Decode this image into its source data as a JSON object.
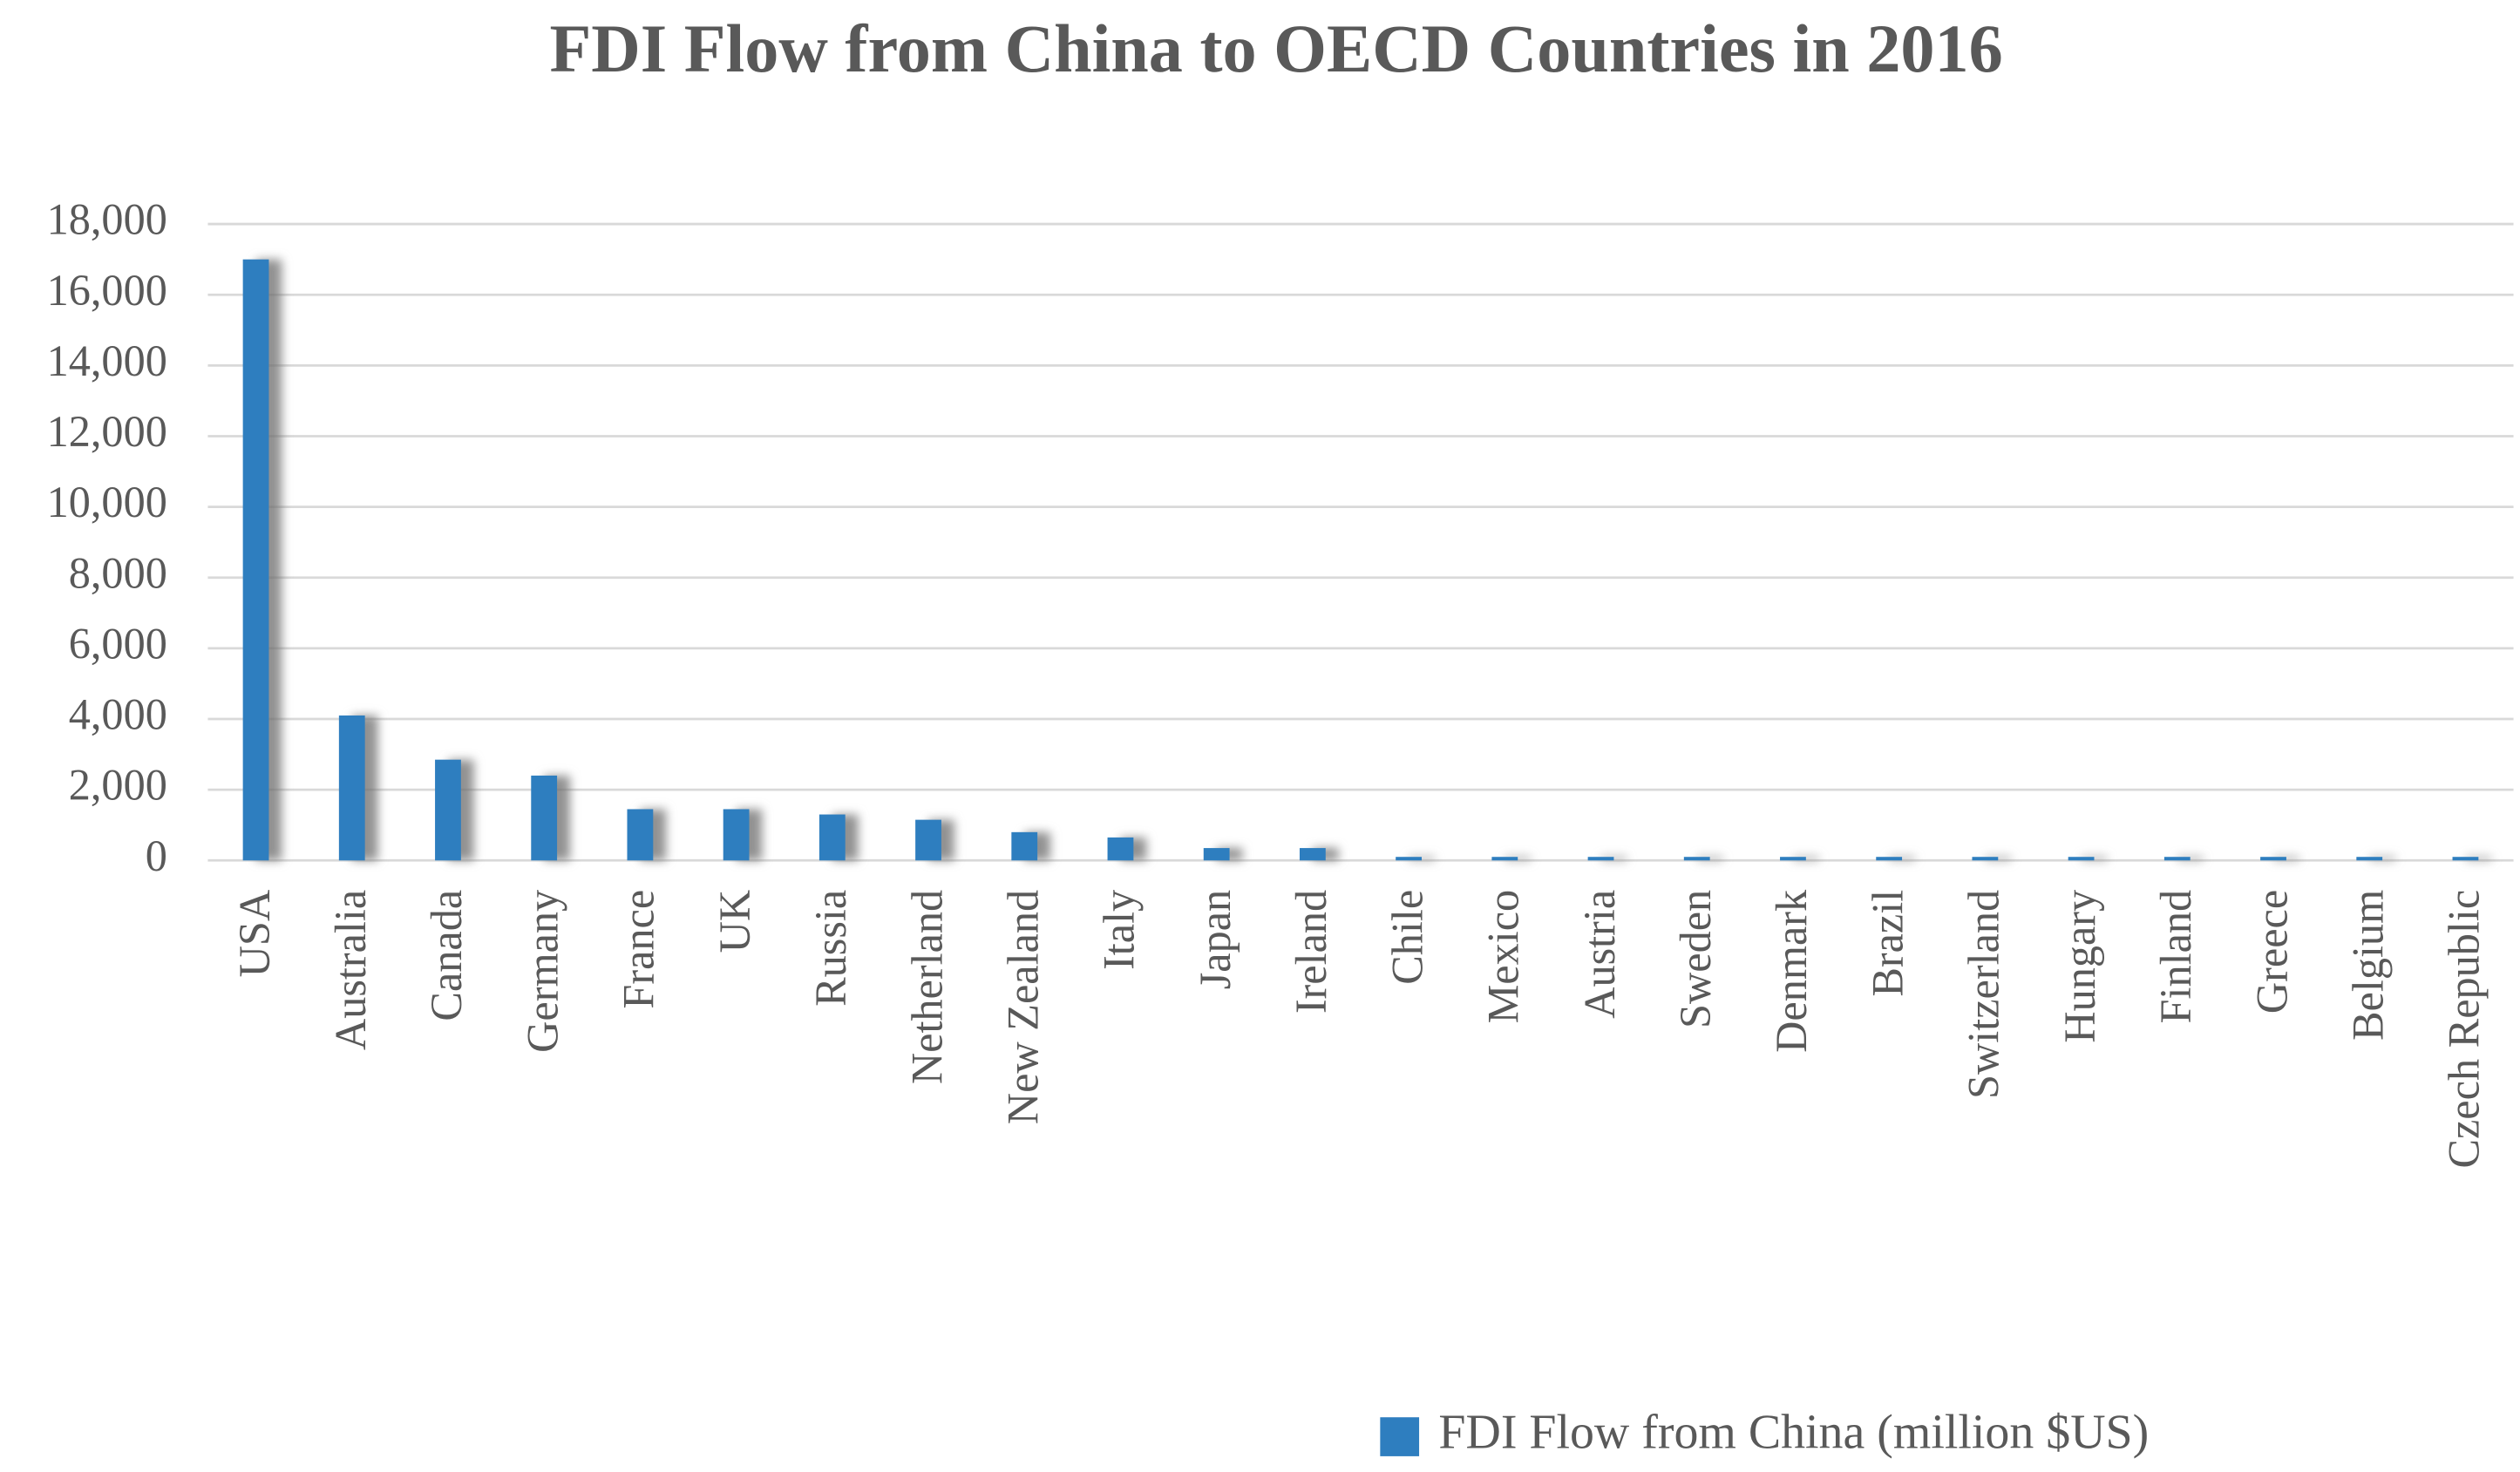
{
  "chart_data": {
    "type": "bar",
    "title": "FDI Flow from China to OECD Countries in 2016",
    "categories": [
      "USA",
      "Australia",
      "Canada",
      "Germany",
      "France",
      "UK",
      "Russia",
      "Netherland",
      "New Zealand",
      "Italy",
      "Japan",
      "Ireland",
      "Chile",
      "Mexico",
      "Austria",
      "Sweden",
      "Denmark",
      "Brazil",
      "Switzerland",
      "Hungary",
      "Finland",
      "Greece",
      "Belgium",
      "Czech Republic"
    ],
    "series": [
      {
        "name": "FDI Flow from China (million $US)",
        "color": "#2e7ebf",
        "values": [
          17000,
          4100,
          2850,
          2400,
          1450,
          1450,
          1300,
          1150,
          800,
          650,
          350,
          350,
          100,
          100,
          100,
          100,
          100,
          100,
          100,
          100,
          100,
          100,
          100,
          100
        ]
      }
    ],
    "ylim": [
      0,
      18000
    ],
    "yticks": [
      0,
      {
        "value": 2000,
        "label": "2,000"
      },
      {
        "value": 4000,
        "label": "4,000"
      },
      {
        "value": 6000,
        "label": "6,000"
      },
      {
        "value": 8000,
        "label": "8,000"
      },
      {
        "value": 10000,
        "label": "10,000"
      },
      {
        "value": 12000,
        "label": "12,000"
      },
      {
        "value": 14000,
        "label": "14,000"
      },
      {
        "value": 16000,
        "label": "16,000"
      },
      {
        "value": 18000,
        "label": "18,000"
      }
    ],
    "grid": true,
    "legend": "bottom-right"
  }
}
